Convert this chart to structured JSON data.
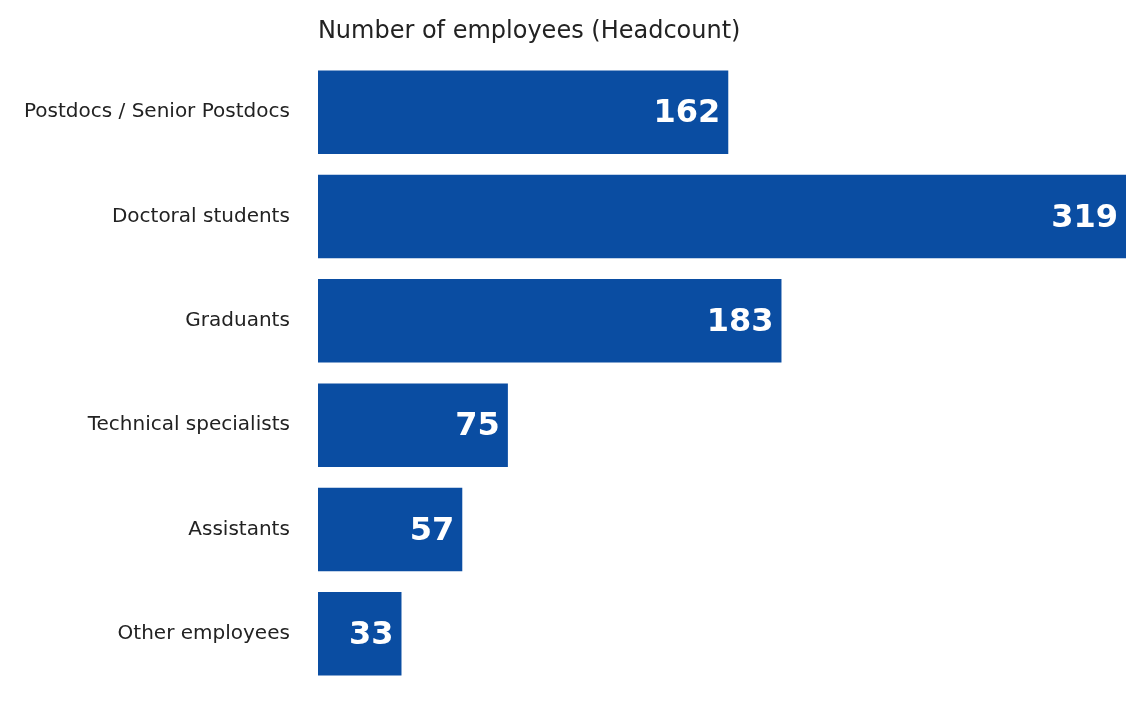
{
  "chart_data": {
    "type": "bar",
    "orientation": "horizontal",
    "title": "Number of employees (Headcount)",
    "categories": [
      "Postdocs / Senior Postdocs",
      "Doctoral students",
      "Graduants",
      "Technical specialists",
      "Assistants",
      "Other employees"
    ],
    "values": [
      162,
      319,
      183,
      75,
      57,
      33
    ],
    "color": "#0a4da2",
    "data_labels": true
  }
}
